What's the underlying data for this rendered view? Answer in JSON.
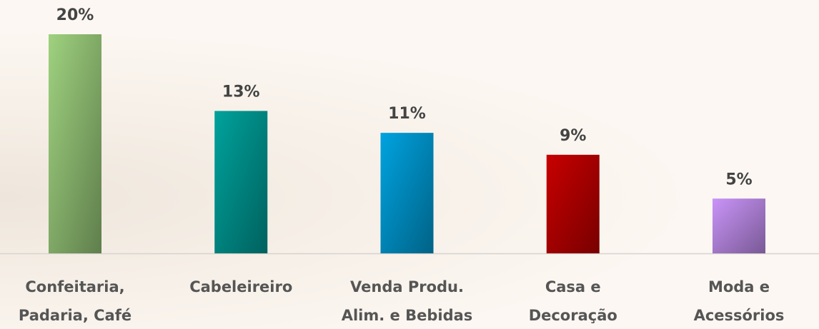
{
  "chart_data": {
    "type": "bar",
    "categories": [
      "Confeitaria, Padaria, Café",
      "Cabeleireiro",
      "Venda Produ. Alim. e Bebidas",
      "Casa e Decoração",
      "Moda e Acessórios"
    ],
    "values": [
      20,
      13,
      11,
      9,
      5
    ],
    "value_labels": [
      "20%",
      "13%",
      "11%",
      "9%",
      "5%"
    ],
    "colors": [
      "#9fd27f",
      "#00a29c",
      "#00a3e0",
      "#c80000",
      "#c994f8"
    ]
  }
}
